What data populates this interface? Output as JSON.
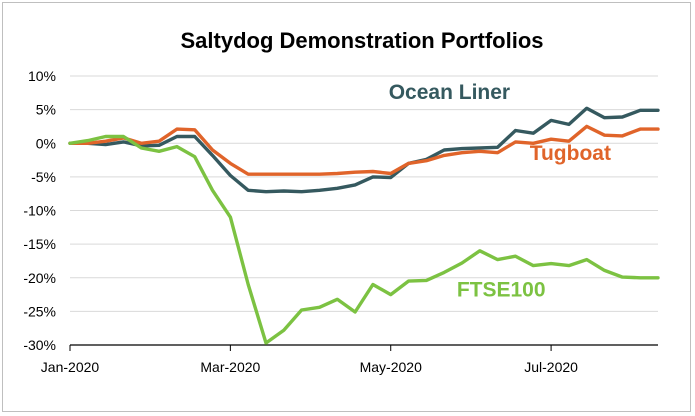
{
  "chart_data": {
    "type": "line",
    "title": "Saltydog Demonstration Portfolios",
    "xlabel": "",
    "ylabel": "",
    "ylim": [
      -30,
      10
    ],
    "y_ticks": [
      10,
      5,
      0,
      -5,
      -10,
      -15,
      -20,
      -25,
      -30
    ],
    "y_tick_labels": [
      "10%",
      "5%",
      "0%",
      "-5%",
      "-10%",
      "-15%",
      "-20%",
      "-25%",
      "-30%"
    ],
    "x_range": [
      0,
      33
    ],
    "x_ticks": [
      0,
      9,
      18,
      27
    ],
    "x_tick_labels": [
      "Jan-2020",
      "Mar-2020",
      "May-2020",
      "Jul-2020"
    ],
    "grid": "horizontal",
    "x": [
      0,
      1,
      2,
      3,
      4,
      5,
      6,
      7,
      8,
      9,
      10,
      11,
      12,
      13,
      14,
      15,
      16,
      17,
      18,
      19,
      20,
      21,
      22,
      23,
      24,
      25,
      26,
      27,
      28,
      29,
      30,
      31,
      32,
      33
    ],
    "series": [
      {
        "name": "Ocean Liner",
        "color": "#35595F",
        "values": [
          0,
          0,
          -0.2,
          0.2,
          -0.4,
          -0.3,
          1,
          1,
          -1.8,
          -4.8,
          -7,
          -7.2,
          -7.1,
          -7.2,
          -7,
          -6.7,
          -6.2,
          -5,
          -5.1,
          -3,
          -2.4,
          -1,
          -0.8,
          -0.7,
          -0.6,
          1.9,
          1.5,
          3.4,
          2.8,
          5.2,
          3.8,
          3.9,
          4.9,
          4.9
        ]
      },
      {
        "name": "Tugboat",
        "color": "#E0642A",
        "values": [
          0,
          0,
          0.3,
          0.8,
          0,
          0.3,
          2.1,
          2,
          -1,
          -3,
          -4.6,
          -4.6,
          -4.6,
          -4.6,
          -4.6,
          -4.5,
          -4.3,
          -4.2,
          -4.5,
          -3,
          -2.6,
          -1.8,
          -1.4,
          -1.2,
          -1.4,
          0.2,
          0,
          0.6,
          0.3,
          2.5,
          1.2,
          1.1,
          2.1,
          2.1
        ]
      },
      {
        "name": "FTSE100",
        "color": "#7CC242",
        "values": [
          0,
          0.4,
          1,
          1,
          -0.7,
          -1.2,
          -0.5,
          -2,
          -7,
          -11,
          -21,
          -29.7,
          -27.8,
          -24.8,
          -24.4,
          -23.2,
          -25.1,
          -21,
          -22.5,
          -20.5,
          -20.4,
          -19.2,
          -17.8,
          -16,
          -17.3,
          -16.8,
          -18.2,
          -17.9,
          -18.2,
          -17.3,
          -18.9,
          -19.9,
          -20,
          -20
        ]
      }
    ]
  }
}
